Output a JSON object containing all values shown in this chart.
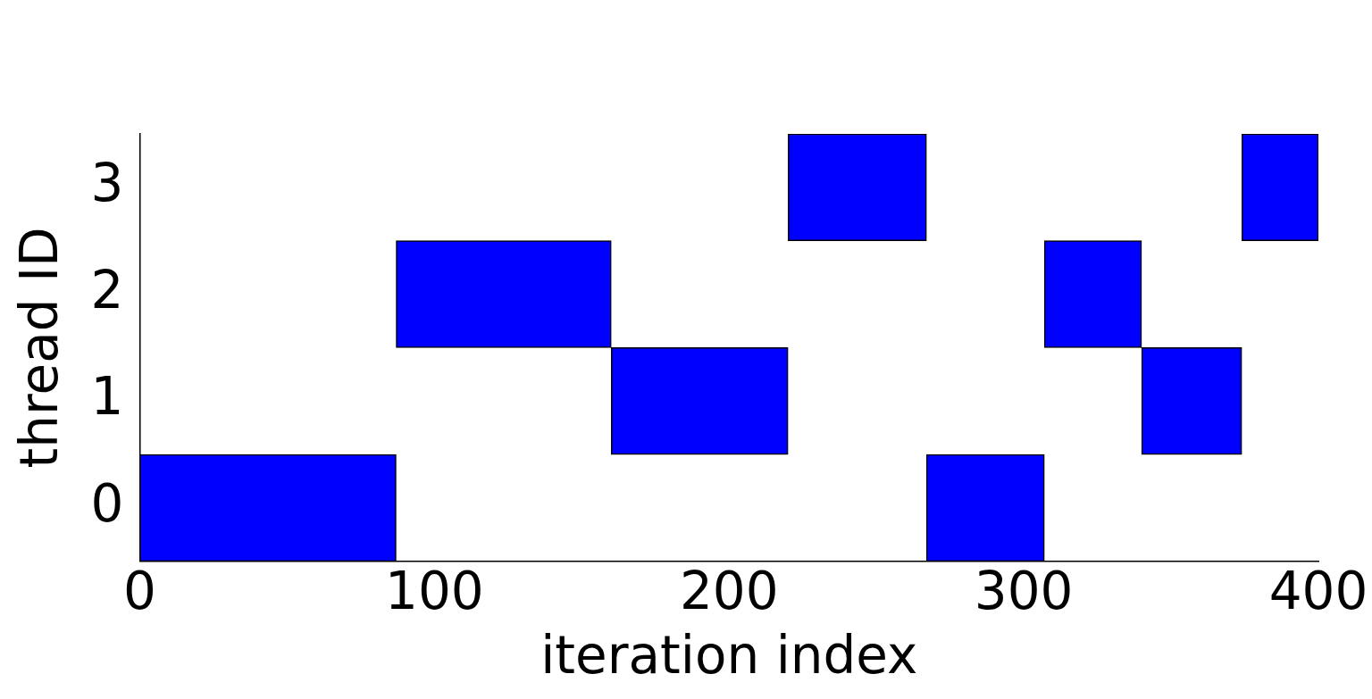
{
  "chart_data": {
    "type": "bar",
    "orientation": "horizontal",
    "xlabel": "iteration index",
    "ylabel": "thread ID",
    "categories": [
      "3",
      "2",
      "1",
      "0"
    ],
    "series": [
      {
        "color": "#0000ff",
        "base": [
          220,
          87,
          160,
          0
        ],
        "values": [
          47,
          73,
          60,
          87
        ]
      },
      {
        "color": "#0000ff",
        "base": [
          374,
          307,
          340,
          267
        ],
        "values": [
          26,
          33,
          34,
          40
        ]
      }
    ],
    "xlim": [
      0,
      400
    ],
    "xticks": [
      0,
      100,
      200,
      300,
      400
    ],
    "grid": false,
    "legend": false
  }
}
